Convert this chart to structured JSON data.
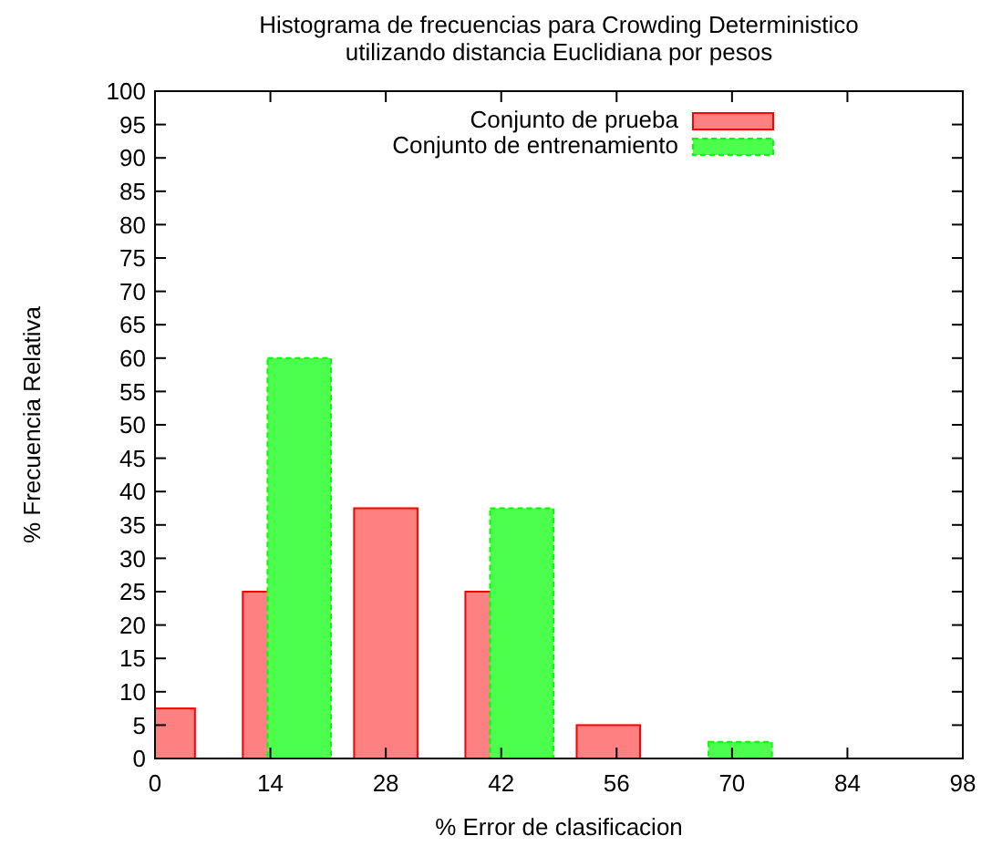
{
  "chart_data": {
    "type": "bar",
    "title": "Histograma de frecuencias para Crowding Deterministico\nutilizando distancia Euclidiana por pesos",
    "xlabel": "% Error de clasificacion",
    "ylabel": "% Frecuencia Relativa",
    "xlim": [
      0,
      98
    ],
    "xticks": [
      0,
      14,
      28,
      42,
      56,
      70,
      84,
      98
    ],
    "ylim": [
      0,
      100
    ],
    "yticks": [
      0,
      5,
      10,
      15,
      20,
      25,
      30,
      35,
      40,
      45,
      50,
      55,
      60,
      65,
      70,
      75,
      80,
      85,
      90,
      95,
      100
    ],
    "legend": "top",
    "grid": false,
    "series": [
      {
        "name": "Conjunto de prueba",
        "color": "#ff8080",
        "x": [
          1,
          14.5,
          28,
          41.5,
          55,
          68,
          81.5
        ],
        "values": [
          7.5,
          25,
          37.5,
          25,
          5,
          0,
          0
        ],
        "line_style": "solid"
      },
      {
        "name": "Conjunto de entrenamiento",
        "color": "#4dff4d",
        "x": [
          4,
          17.5,
          31,
          44.5,
          58,
          71,
          84.5
        ],
        "values": [
          0,
          60,
          0,
          37.5,
          0,
          2.5,
          0
        ],
        "line_style": "dashed"
      }
    ]
  }
}
